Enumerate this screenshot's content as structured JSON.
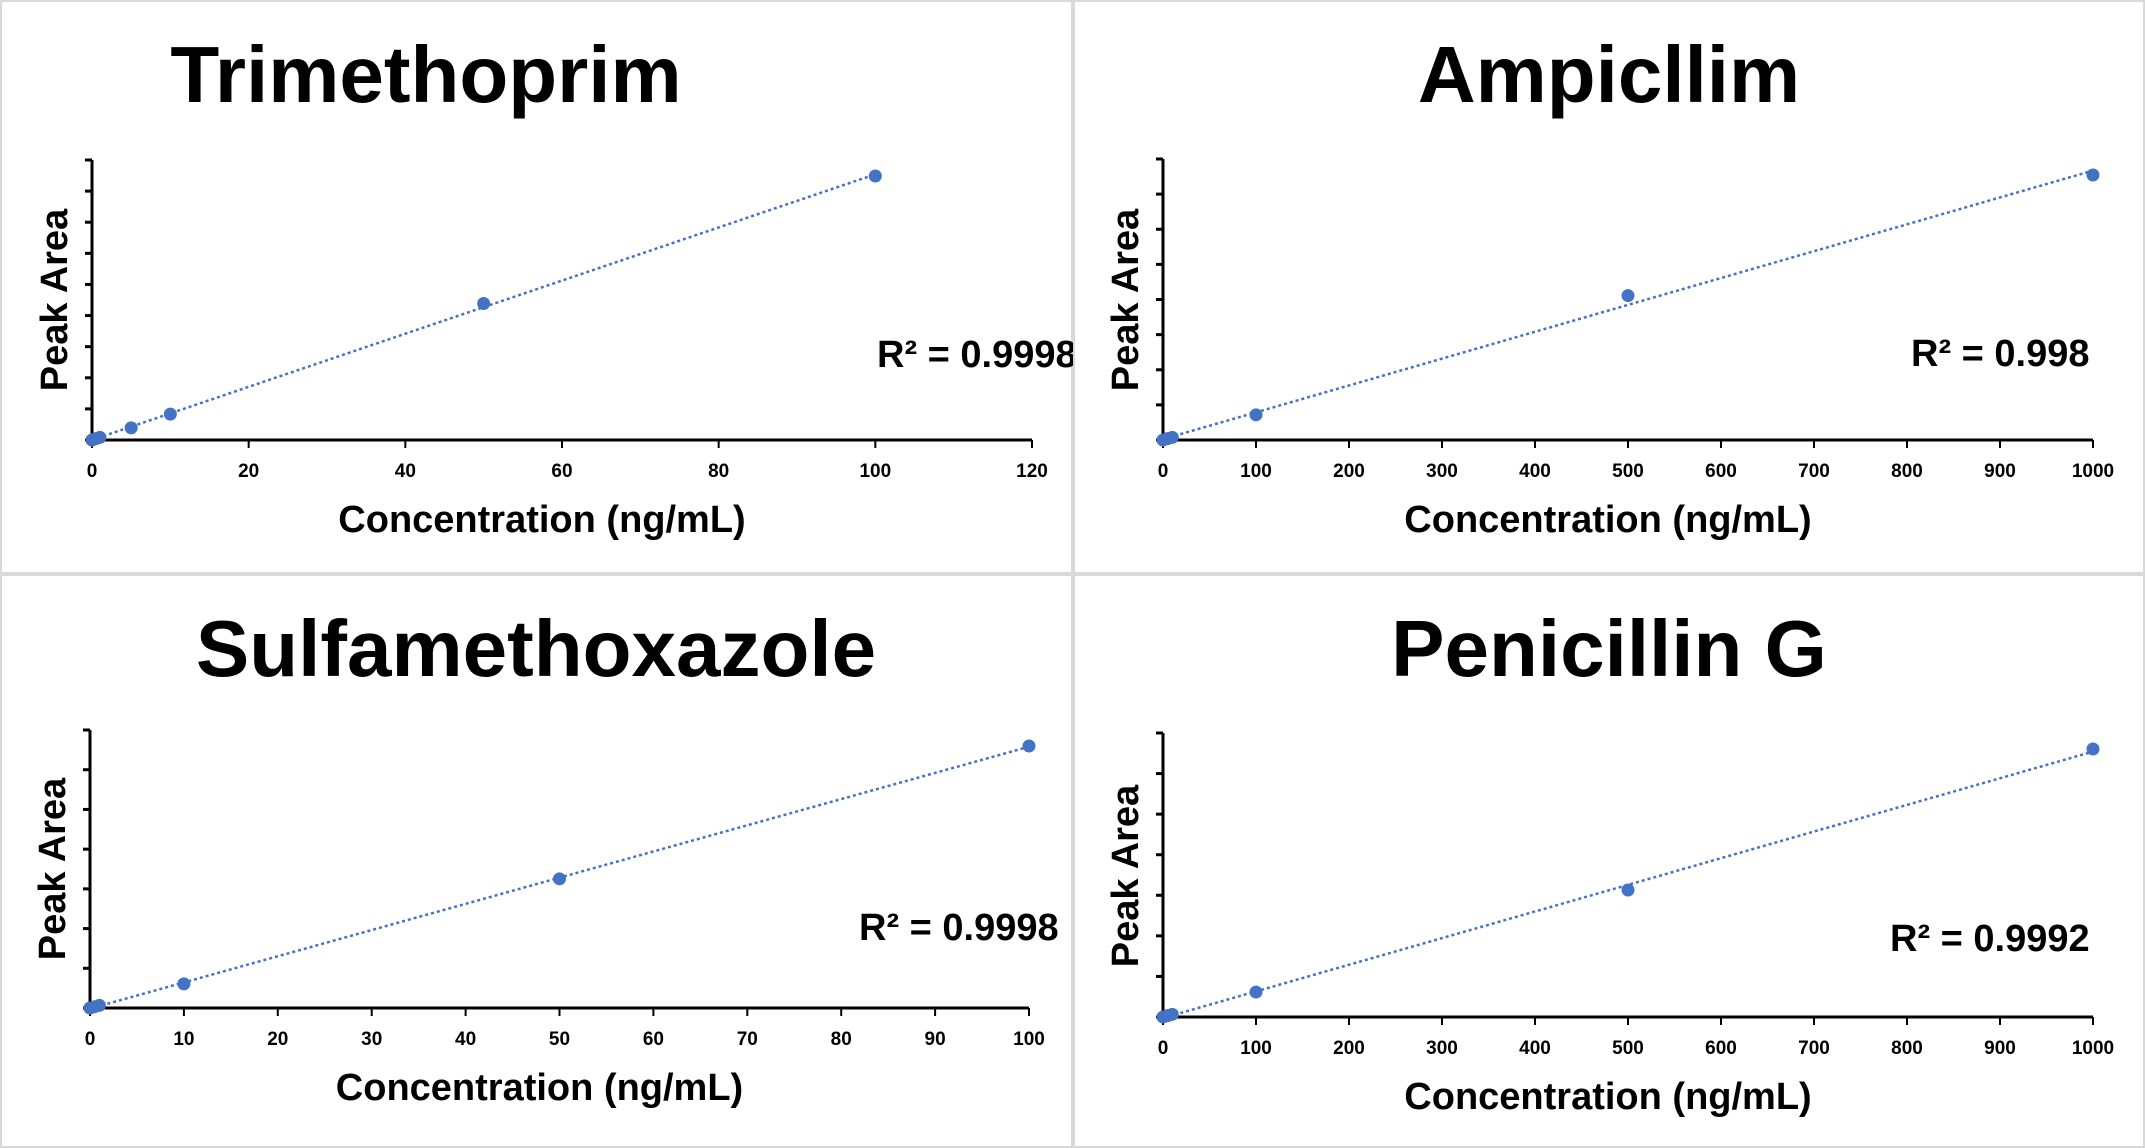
{
  "chart_data": [
    {
      "type": "scatter",
      "title": "Trimethoprim",
      "xlabel": "Concentration (ng/mL)",
      "ylabel": "Peak Area",
      "xlim": [
        0,
        120
      ],
      "xticks": [
        "0",
        "20",
        "40",
        "60",
        "80",
        "100",
        "120"
      ],
      "y_tick_count": 9,
      "grid": false,
      "trendline": "linear",
      "color": "#4472c4",
      "x": [
        0,
        0.5,
        1,
        5,
        10,
        50,
        100
      ],
      "y": [
        0,
        0.5,
        1,
        4.6,
        9.8,
        51.7,
        100
      ],
      "r2_label": "R² = 0.9998"
    },
    {
      "type": "scatter",
      "title": "Ampicllim",
      "xlabel": "Concentration (ng/mL)",
      "ylabel": "Peak Area",
      "xlim": [
        0,
        1000
      ],
      "xticks": [
        "0",
        "100",
        "200",
        "300",
        "400",
        "500",
        "600",
        "700",
        "800",
        "900",
        "1000"
      ],
      "y_tick_count": 8,
      "grid": false,
      "trendline": "linear",
      "color": "#4472c4",
      "x": [
        0,
        5,
        10,
        100,
        500,
        1000
      ],
      "y": [
        0,
        0.5,
        1,
        9.5,
        54.5,
        100
      ],
      "r2_label": "R² = 0.998"
    },
    {
      "type": "scatter",
      "title": "Sulfamethoxazole",
      "xlabel": "Concentration (ng/mL)",
      "ylabel": "Peak Area",
      "xlim": [
        0,
        100
      ],
      "xticks": [
        "0",
        "10",
        "20",
        "30",
        "40",
        "50",
        "60",
        "70",
        "80",
        "90",
        "100"
      ],
      "y_tick_count": 7,
      "grid": false,
      "trendline": "linear",
      "color": "#4472c4",
      "x": [
        0,
        0.5,
        1,
        10,
        50,
        100
      ],
      "y": [
        0,
        0.5,
        1,
        9.2,
        49.3,
        100
      ],
      "r2_label": "R² = 0.9998"
    },
    {
      "type": "scatter",
      "title": "Penicillin G",
      "xlabel": "Concentration (ng/mL)",
      "ylabel": "Peak Area",
      "xlim": [
        0,
        1000
      ],
      "xticks": [
        "0",
        "100",
        "200",
        "300",
        "400",
        "500",
        "600",
        "700",
        "800",
        "900",
        "1000"
      ],
      "y_tick_count": 7,
      "grid": false,
      "trendline": "linear",
      "color": "#4472c4",
      "x": [
        0,
        5,
        10,
        100,
        500,
        1000
      ],
      "y": [
        0,
        0.5,
        1,
        9.3,
        47.4,
        100
      ],
      "r2_label": "R² = 0.9992"
    }
  ]
}
